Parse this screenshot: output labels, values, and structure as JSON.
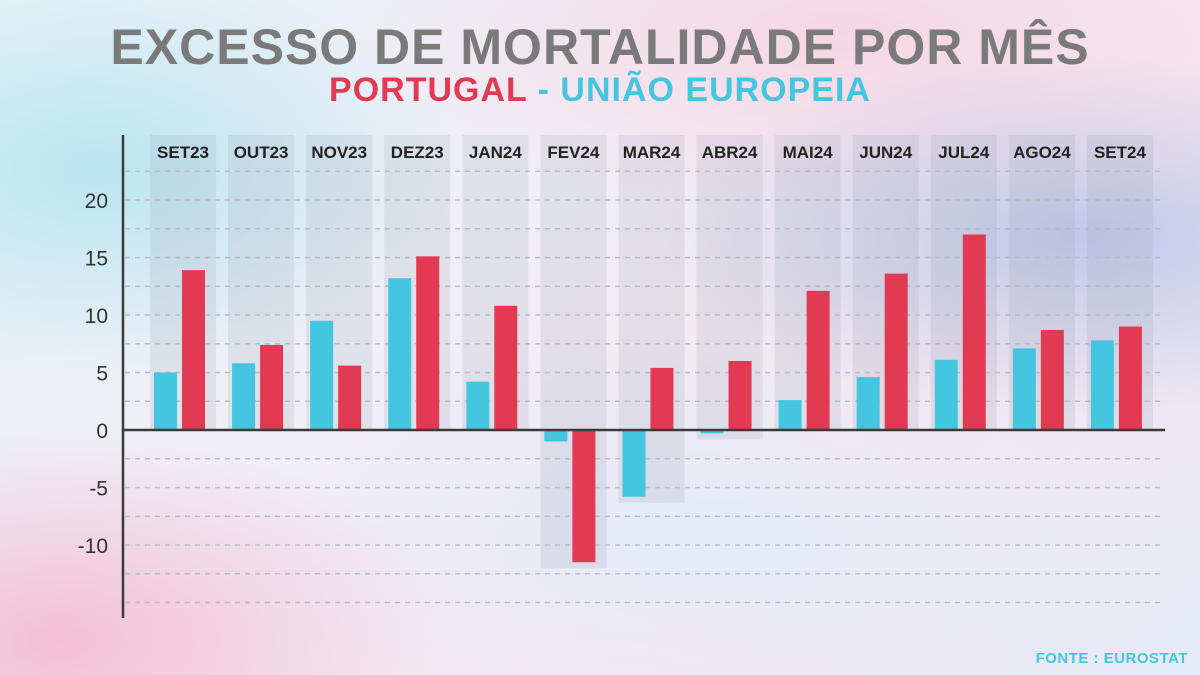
{
  "title": "EXCESSO DE MORTALIDADE POR MÊS",
  "subtitle": {
    "portugal": "PORTUGAL",
    "separator": " - ",
    "eu": "UNIÃO EUROPEIA"
  },
  "source": "FONTE : EUROSTAT",
  "colors": {
    "portugal": "#e23a52",
    "eu": "#45c6e0",
    "title": "#7a7a7a"
  },
  "chart_data": {
    "type": "bar",
    "title": "EXCESSO DE MORTALIDADE POR MÊS",
    "categories": [
      "SET23",
      "OUT23",
      "NOV23",
      "DEZ23",
      "JAN24",
      "FEV24",
      "MAR24",
      "ABR24",
      "MAI24",
      "JUN24",
      "JUL24",
      "AGO24",
      "SET24"
    ],
    "series": [
      {
        "name": "UNIÃO EUROPEIA",
        "color": "#45c6e0",
        "values": [
          5.0,
          5.8,
          9.5,
          13.2,
          4.2,
          -1.0,
          -5.8,
          -0.3,
          2.6,
          4.6,
          6.1,
          7.1,
          7.8
        ]
      },
      {
        "name": "PORTUGAL",
        "color": "#e23a52",
        "values": [
          13.9,
          7.4,
          5.6,
          15.1,
          10.8,
          -11.5,
          5.4,
          6.0,
          12.1,
          13.6,
          17.0,
          8.7,
          9.0
        ]
      }
    ],
    "yticks": [
      -10,
      -5,
      0,
      5,
      10,
      15,
      20
    ],
    "ylim": [
      -16,
      25
    ],
    "grid": true,
    "legend": "subtitle"
  }
}
